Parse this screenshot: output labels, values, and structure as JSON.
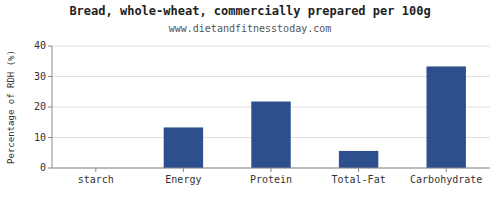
{
  "chart_data": {
    "type": "bar",
    "title": "Bread, whole-wheat, commercially prepared per 100g",
    "subtitle": "www.dietandfitnesstoday.com",
    "categories": [
      "starch",
      "Energy",
      "Protein",
      "Total-Fat",
      "Carbohydrate"
    ],
    "values": [
      0,
      13.3,
      21.8,
      5.6,
      33.3
    ],
    "color": "#2d4f8e",
    "ylabel": "Percentage of RDH (%)",
    "ylim": [
      0,
      40
    ],
    "yticks": [
      0,
      10,
      20,
      30,
      40
    ],
    "grid": true
  }
}
